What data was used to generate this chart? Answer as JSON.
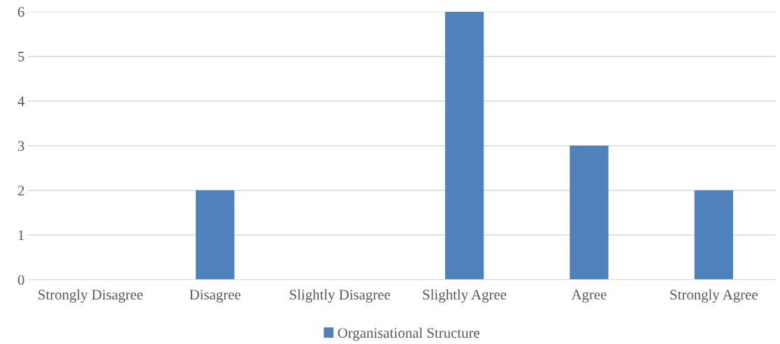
{
  "chart_data": {
    "type": "bar",
    "categories": [
      "Strongly Disagree",
      "Disagree",
      "Slightly Disagree",
      "Slightly Agree",
      "Agree",
      "Strongly Agree"
    ],
    "series": [
      {
        "name": "Organisational Structure",
        "color": "#4f81bd",
        "values": [
          0,
          2,
          0,
          6,
          3,
          2
        ]
      }
    ],
    "ylim": [
      0,
      6
    ],
    "yticks": [
      0,
      1,
      2,
      3,
      4,
      5,
      6
    ],
    "grid": "y",
    "legend": "bottom"
  }
}
